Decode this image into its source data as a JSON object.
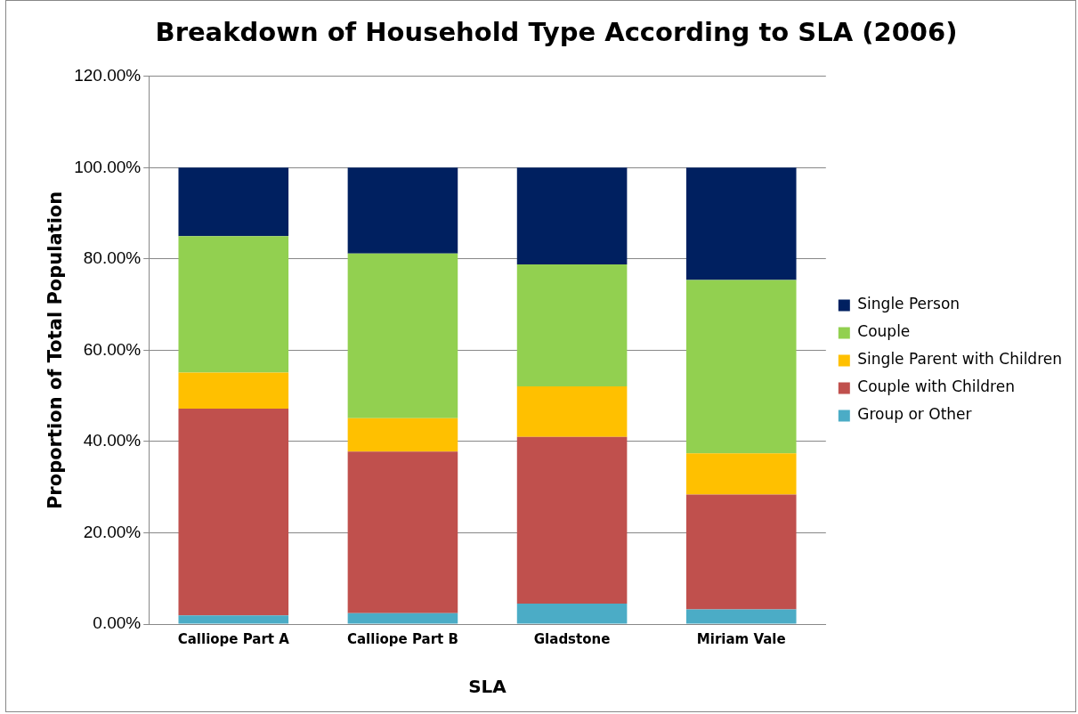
{
  "chart_data": {
    "type": "bar",
    "title": "Breakdown of Household Type According to SLA (2006)",
    "xlabel": "SLA",
    "ylabel": "Proportion of Total Population",
    "categories": [
      "Calliope Part A",
      "Calliope Part B",
      "Gladstone",
      "Miriam Vale"
    ],
    "stacked": true,
    "series": [
      {
        "name": "Group or Other",
        "color": "#4bacc6",
        "values": [
          1.9,
          2.4,
          4.5,
          3.2
        ]
      },
      {
        "name": "Couple with Children",
        "color": "#c0504d",
        "values": [
          45.3,
          35.4,
          36.5,
          25.2
        ]
      },
      {
        "name": "Single Parent with Children",
        "color": "#ffc000",
        "values": [
          7.9,
          7.3,
          11.1,
          9.0
        ]
      },
      {
        "name": "Couple",
        "color": "#92d050",
        "values": [
          29.9,
          36.1,
          26.7,
          38.0
        ]
      },
      {
        "name": "Single Person",
        "color": "#002060",
        "values": [
          15.0,
          18.8,
          21.2,
          24.6
        ]
      }
    ],
    "ylim": [
      0,
      120
    ],
    "yticks": [
      {
        "value": 0,
        "label": "0.00%"
      },
      {
        "value": 20,
        "label": "20.00%"
      },
      {
        "value": 40,
        "label": "40.00%"
      },
      {
        "value": 60,
        "label": "60.00%"
      },
      {
        "value": 80,
        "label": "80.00%"
      },
      {
        "value": 100,
        "label": "100.00%"
      },
      {
        "value": 120,
        "label": "120.00%"
      }
    ],
    "grid": "y",
    "legend": "right"
  }
}
